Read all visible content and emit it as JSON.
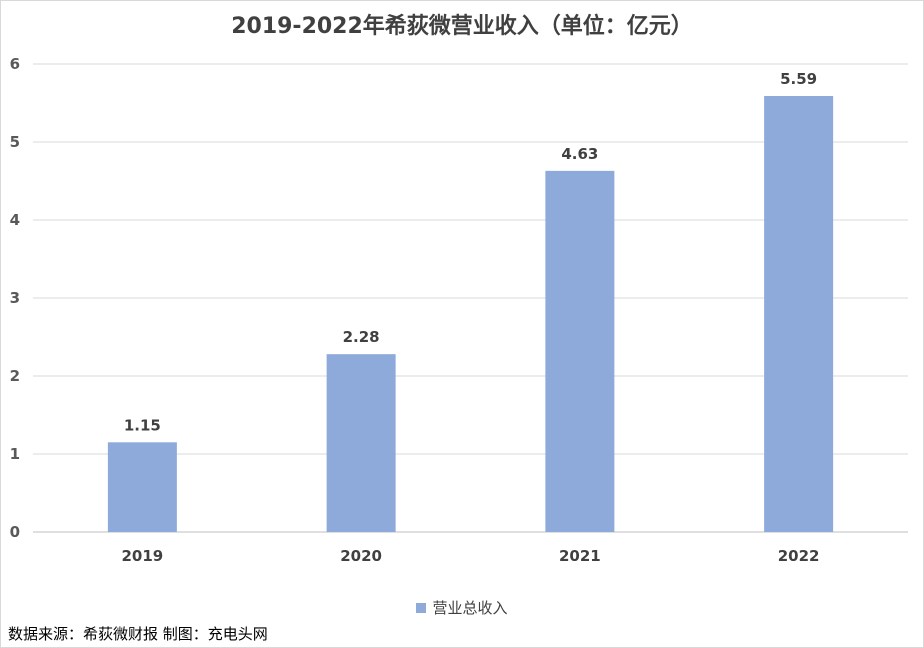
{
  "chart_data": {
    "type": "bar",
    "title": "2019-2022年希荻微营业收入（单位：亿元）",
    "categories": [
      "2019",
      "2020",
      "2021",
      "2022"
    ],
    "series": [
      {
        "name": "营业总收入",
        "values": [
          1.15,
          2.28,
          4.63,
          5.59
        ]
      }
    ],
    "data_labels": [
      "1.15",
      "2.28",
      "4.63",
      "5.59"
    ],
    "ylim": [
      0,
      6
    ],
    "yticks": [
      "0",
      "1",
      "2",
      "3",
      "4",
      "5",
      "6"
    ],
    "grid": true,
    "legend_position": "bottom",
    "bar_color": "#8eaadb"
  },
  "footer": {
    "source": "数据来源：希荻微财报  制图：充电头网"
  }
}
